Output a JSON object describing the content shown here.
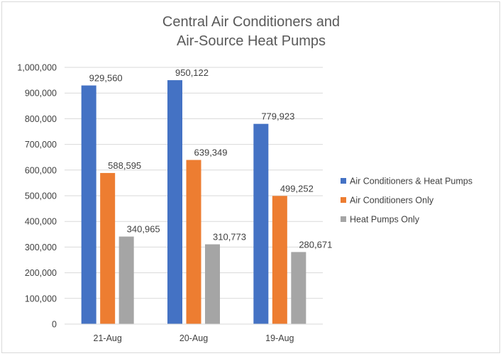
{
  "chart_data": {
    "type": "bar",
    "title_lines": [
      "Central Air Conditioners and",
      "Air-Source Heat Pumps"
    ],
    "categories": [
      "21-Aug",
      "20-Aug",
      "19-Aug"
    ],
    "series": [
      {
        "name": "Air Conditioners & Heat Pumps",
        "values": [
          929560,
          950122,
          779923
        ],
        "labels": [
          "929,560",
          "950,122",
          "779,923"
        ],
        "color": "#4472C4"
      },
      {
        "name": "Air Conditioners Only",
        "values": [
          588595,
          639349,
          499252
        ],
        "labels": [
          "588,595",
          "639,349",
          "499,252"
        ],
        "color": "#ED7D31"
      },
      {
        "name": "Heat Pumps Only",
        "values": [
          340965,
          310773,
          280671
        ],
        "labels": [
          "340,965",
          "310,773",
          "280,671"
        ],
        "color": "#A5A5A5"
      }
    ],
    "y_ticks": [
      {
        "value": 0,
        "label": "0"
      },
      {
        "value": 100000,
        "label": "100,000"
      },
      {
        "value": 200000,
        "label": "200,000"
      },
      {
        "value": 300000,
        "label": "300,000"
      },
      {
        "value": 400000,
        "label": "400,000"
      },
      {
        "value": 500000,
        "label": "500,000"
      },
      {
        "value": 600000,
        "label": "600,000"
      },
      {
        "value": 700000,
        "label": "700,000"
      },
      {
        "value": 800000,
        "label": "800,000"
      },
      {
        "value": 900000,
        "label": "900,000"
      },
      {
        "value": 1000000,
        "label": "1,000,000"
      }
    ],
    "ylim": [
      0,
      1000000
    ],
    "grid": true,
    "legend_position": "right"
  }
}
